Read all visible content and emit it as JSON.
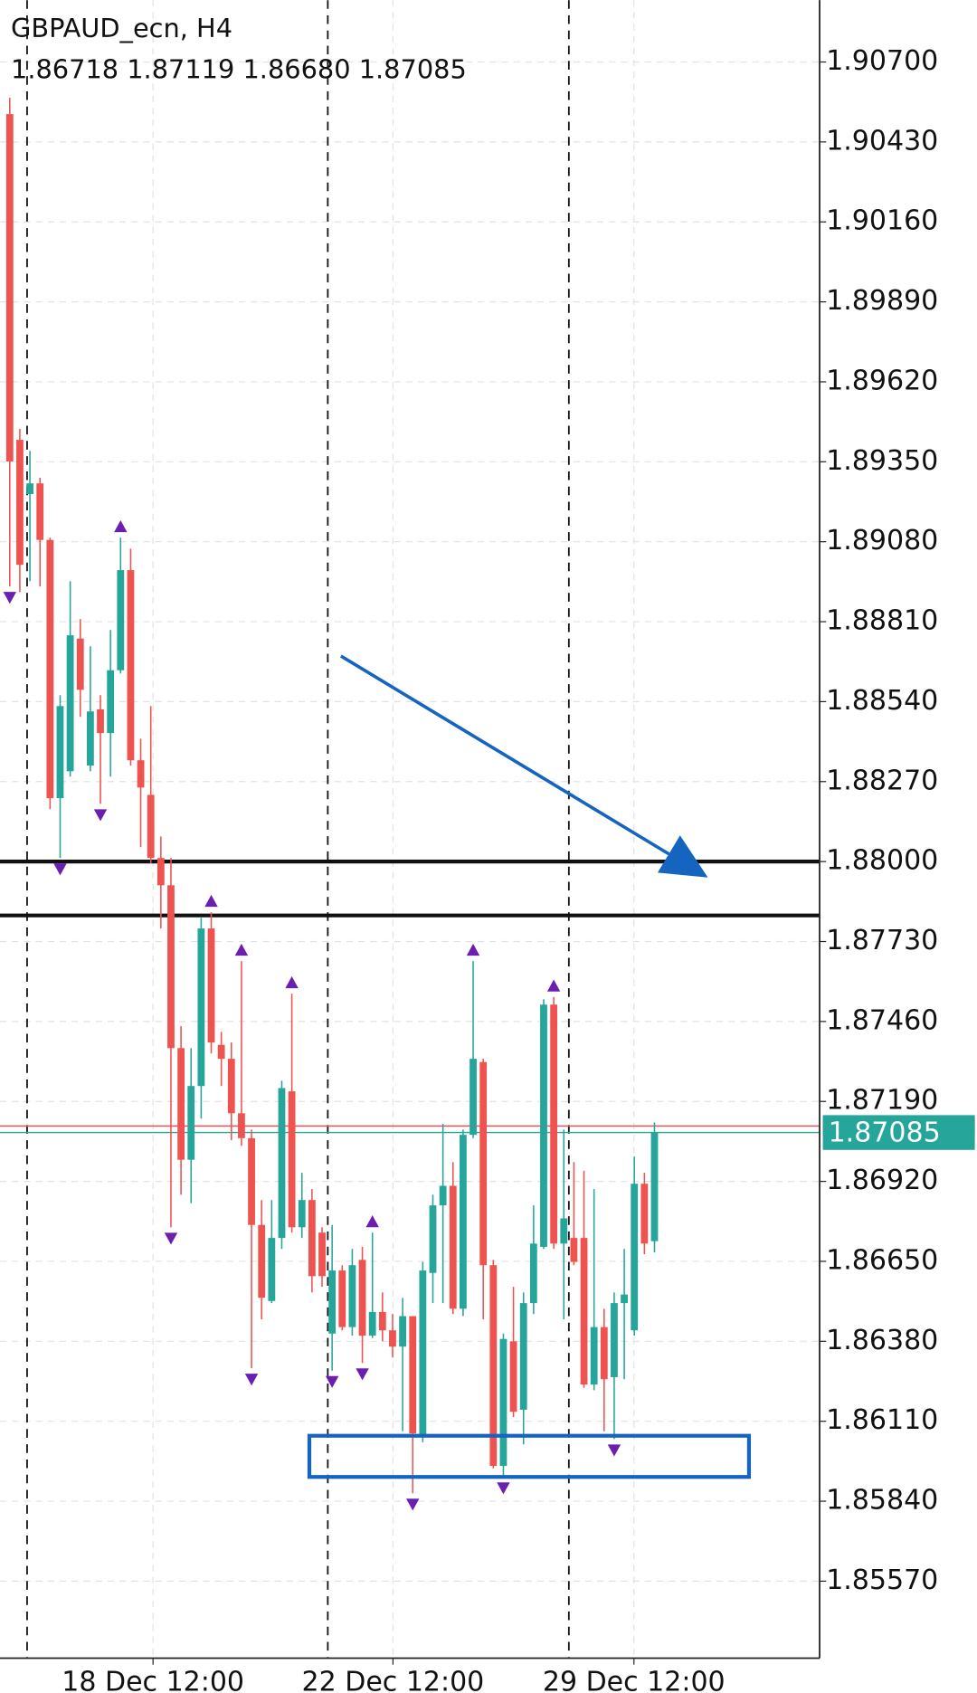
{
  "chart_data": {
    "type": "candlestick",
    "title": "GBPAUD_ecn, H4",
    "subtitle": "1.86718 1.87119 1.86680 1.87085",
    "up_color": "#26a69a",
    "down_color": "#ef5350",
    "x": [
      0,
      1,
      2,
      3,
      4,
      5,
      6,
      7,
      8,
      9,
      10,
      11,
      12,
      13,
      14,
      15,
      16,
      17,
      18,
      19,
      20,
      21,
      22,
      23,
      24,
      25,
      26,
      27,
      28,
      29,
      30,
      31,
      32,
      33,
      34,
      35,
      36,
      37,
      38,
      39,
      40,
      41,
      42,
      43,
      44,
      45,
      46,
      47,
      48,
      49,
      50,
      51,
      52,
      53,
      54,
      55,
      56,
      57,
      58,
      59,
      60,
      61,
      62,
      63,
      64
    ],
    "open": [
      1.90524,
      1.89424,
      1.89241,
      1.89277,
      1.89086,
      1.88214,
      1.88305,
      1.88753,
      1.88324,
      1.88514,
      1.88434,
      1.88646,
      1.88984,
      1.88342,
      1.88225,
      1.88012,
      1.8792,
      1.8737,
      1.86993,
      1.87242,
      1.87774,
      1.87381,
      1.87334,
      1.8715,
      1.87066,
      1.86773,
      1.86516,
      1.86729,
      1.87224,
      1.86765,
      1.86857,
      1.86747,
      1.86406,
      1.86619,
      1.86428,
      1.86655,
      1.86399,
      1.86479,
      1.86417,
      1.86362,
      1.86465,
      1.86061,
      1.86611,
      1.86839,
      1.86905,
      1.8649,
      1.87077,
      1.87323,
      1.86637,
      1.85959,
      1.8638,
      1.86149,
      1.86509,
      1.86699,
      1.87517,
      1.8671,
      1.86729,
      1.86729,
      1.86234,
      1.86428,
      1.86259,
      1.86509,
      1.86417,
      1.86912,
      1.86718
    ],
    "high": [
      1.90579,
      1.89461,
      1.89387,
      1.89296,
      1.89094,
      1.88562,
      1.88947,
      1.88819,
      1.88727,
      1.88562,
      1.88782,
      1.89094,
      1.89057,
      1.88415,
      1.88525,
      1.88085,
      1.88012,
      1.87444,
      1.8737,
      1.8781,
      1.87829,
      1.87425,
      1.87389,
      1.87664,
      1.87095,
      1.86857,
      1.86857,
      1.8726,
      1.87554,
      1.86949,
      1.86894,
      1.86765,
      1.86773,
      1.86637,
      1.86692,
      1.86699,
      1.86747,
      1.86545,
      1.86472,
      1.86527,
      1.86465,
      1.86648,
      1.86875,
      1.87114,
      1.86985,
      1.87095,
      1.87664,
      1.87334,
      1.86655,
      1.86406,
      1.86564,
      1.86545,
      1.86839,
      1.87535,
      1.87543,
      1.87095,
      1.86985,
      1.86956,
      1.86894,
      1.8649,
      1.86545,
      1.86692,
      1.87004,
      1.86949,
      1.87119
    ],
    "low": [
      1.88929,
      1.8891,
      1.88947,
      1.88929,
      1.88177,
      1.88012,
      1.88287,
      1.88489,
      1.88305,
      1.88195,
      1.88287,
      1.88635,
      1.88324,
      1.88049,
      1.87994,
      1.87774,
      1.86765,
      1.86875,
      1.86846,
      1.87132,
      1.87352,
      1.87242,
      1.87059,
      1.8704,
      1.86289,
      1.86454,
      1.86509,
      1.86692,
      1.86747,
      1.86729,
      1.86545,
      1.86564,
      1.86281,
      1.86417,
      1.86399,
      1.86307,
      1.86391,
      1.8638,
      1.86325,
      1.86076,
      1.85867,
      1.86039,
      1.86509,
      1.86509,
      1.86472,
      1.86465,
      1.87066,
      1.86454,
      1.85951,
      1.85922,
      1.86124,
      1.86032,
      1.86472,
      1.86692,
      1.86692,
      1.86454,
      1.86637,
      1.86223,
      1.86215,
      1.86076,
      1.8605,
      1.86252,
      1.86399,
      1.86674,
      1.8668
    ],
    "close": [
      1.89351,
      1.89002,
      1.89277,
      1.89086,
      1.88214,
      1.88525,
      1.88764,
      1.8858,
      1.88507,
      1.88434,
      1.88646,
      1.88984,
      1.88342,
      1.8825,
      1.88012,
      1.8792,
      1.8737,
      1.86993,
      1.87242,
      1.87774,
      1.87389,
      1.87334,
      1.8715,
      1.87066,
      1.86773,
      1.86527,
      1.86729,
      1.87235,
      1.86765,
      1.86857,
      1.866,
      1.866,
      1.86619,
      1.86428,
      1.86637,
      1.86399,
      1.86479,
      1.86417,
      1.86362,
      1.86465,
      1.86069,
      1.86619,
      1.86839,
      1.86905,
      1.8649,
      1.87077,
      1.87334,
      1.86637,
      1.85959,
      1.86388,
      1.86142,
      1.86509,
      1.8671,
      1.87517,
      1.8671,
      1.86795,
      1.86648,
      1.86234,
      1.86428,
      1.86252,
      1.86509,
      1.86538,
      1.86912,
      1.8671,
      1.87085
    ],
    "fractals_up": [
      11,
      20,
      23,
      28,
      36,
      46,
      54
    ],
    "fractals_down": [
      0,
      5,
      9,
      16,
      24,
      32,
      35,
      40,
      49,
      60
    ],
    "fractal_color": "#6a1fb0",
    "separators": [
      1.72,
      31.57,
      55.5
    ],
    "levels": [
      1.88,
      1.87818
    ],
    "level_color": "#111111",
    "last_price": 1.87085,
    "last_price_label": "1.87085",
    "ask_price": 1.87107,
    "arrow": {
      "x": [
        32.87,
        69.3
      ],
      "y": [
        1.88694,
        1.87946
      ],
      "color": "#1565c0"
    },
    "box": {
      "x": [
        29.74,
        73.38
      ],
      "y": [
        1.86061,
        1.85922
      ],
      "color": "#1565c0"
    },
    "xlim": [
      -0.97,
      80.39
    ],
    "ylim": [
      1.8531,
      1.90909
    ],
    "xticks": [
      {
        "value": 14.22,
        "label": "18 Dec 12:00"
      },
      {
        "value": 38.04,
        "label": "22 Dec 12:00"
      },
      {
        "value": 61.96,
        "label": "29 Dec 12:00"
      }
    ],
    "yticks": [
      {
        "value": 1.907,
        "label": "1.90700"
      },
      {
        "value": 1.9043,
        "label": "1.90430"
      },
      {
        "value": 1.9016,
        "label": "1.90160"
      },
      {
        "value": 1.8989,
        "label": "1.89890"
      },
      {
        "value": 1.8962,
        "label": "1.89620"
      },
      {
        "value": 1.8935,
        "label": "1.89350"
      },
      {
        "value": 1.8908,
        "label": "1.89080"
      },
      {
        "value": 1.8881,
        "label": "1.88810"
      },
      {
        "value": 1.8854,
        "label": "1.88540"
      },
      {
        "value": 1.8827,
        "label": "1.88270"
      },
      {
        "value": 1.88,
        "label": "1.88000"
      },
      {
        "value": 1.8773,
        "label": "1.87730"
      },
      {
        "value": 1.8746,
        "label": "1.87460"
      },
      {
        "value": 1.8719,
        "label": "1.87190"
      },
      {
        "value": 1.8692,
        "label": "1.86920"
      },
      {
        "value": 1.8665,
        "label": "1.86650"
      },
      {
        "value": 1.8638,
        "label": "1.86380"
      },
      {
        "value": 1.8611,
        "label": "1.86110"
      },
      {
        "value": 1.8584,
        "label": "1.85840"
      },
      {
        "value": 1.8557,
        "label": "1.85570"
      }
    ],
    "grid": true
  }
}
